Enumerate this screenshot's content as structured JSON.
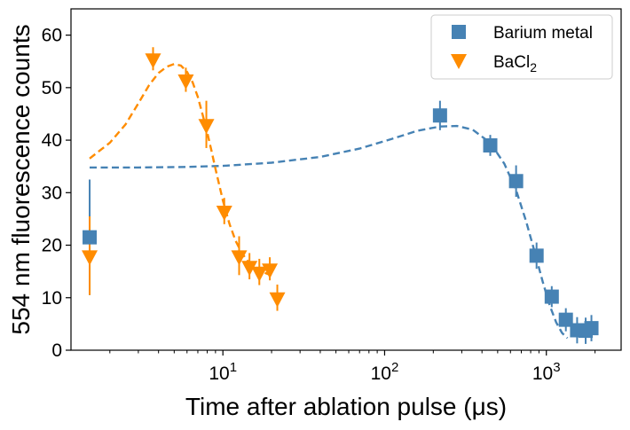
{
  "chart_data": {
    "type": "scatter",
    "xlabel": "Time after ablation pulse (μs)",
    "ylabel": "554 nm fluorescence counts",
    "xscale": "log",
    "xlim": [
      1.15,
      2900
    ],
    "ylim": [
      0,
      65
    ],
    "yticks": [
      0,
      10,
      20,
      30,
      40,
      50,
      60
    ],
    "xticks": [
      {
        "value": 10,
        "base": "10",
        "exp": "1"
      },
      {
        "value": 100,
        "base": "10",
        "exp": "2"
      },
      {
        "value": 1000,
        "base": "10",
        "exp": "3"
      }
    ],
    "legend_position": "top-right",
    "series": [
      {
        "name": "Barium metal",
        "name_display": {
          "text": "Barium metal",
          "sub": ""
        },
        "marker": "square",
        "color": "#4682b4",
        "points": [
          {
            "x": 1.5,
            "y": 21.5,
            "err": 11
          },
          {
            "x": 220,
            "y": 44.7,
            "err": 2.8
          },
          {
            "x": 450,
            "y": 39,
            "err": 2
          },
          {
            "x": 650,
            "y": 32.2,
            "err": 3
          },
          {
            "x": 870,
            "y": 18,
            "err": 2.5
          },
          {
            "x": 1080,
            "y": 10.2,
            "err": 2
          },
          {
            "x": 1320,
            "y": 5.8,
            "err": 2.2
          },
          {
            "x": 1550,
            "y": 3.8,
            "err": 2.5
          },
          {
            "x": 1750,
            "y": 3.7,
            "err": 2.5
          },
          {
            "x": 1900,
            "y": 4.2,
            "err": 2.5
          }
        ],
        "fit": [
          {
            "x": 1.5,
            "y": 34.8
          },
          {
            "x": 3,
            "y": 34.8
          },
          {
            "x": 6,
            "y": 34.9
          },
          {
            "x": 10,
            "y": 35.1
          },
          {
            "x": 20,
            "y": 35.7
          },
          {
            "x": 40,
            "y": 36.8
          },
          {
            "x": 70,
            "y": 38.4
          },
          {
            "x": 110,
            "y": 40.2
          },
          {
            "x": 160,
            "y": 41.8
          },
          {
            "x": 220,
            "y": 42.6
          },
          {
            "x": 280,
            "y": 42.7
          },
          {
            "x": 350,
            "y": 42
          },
          {
            "x": 450,
            "y": 39.5
          },
          {
            "x": 550,
            "y": 35.5
          },
          {
            "x": 650,
            "y": 30.5
          },
          {
            "x": 750,
            "y": 24.5
          },
          {
            "x": 850,
            "y": 18.5
          },
          {
            "x": 950,
            "y": 13
          },
          {
            "x": 1050,
            "y": 8.5
          },
          {
            "x": 1150,
            "y": 5.3
          },
          {
            "x": 1250,
            "y": 3.3
          },
          {
            "x": 1350,
            "y": 2.3
          }
        ]
      },
      {
        "name": "BaCl2",
        "name_display": {
          "text": "BaCl",
          "sub": "2"
        },
        "marker": "triangle-down",
        "color": "#ff8c00",
        "points": [
          {
            "x": 1.5,
            "y": 18,
            "err": 7.5
          },
          {
            "x": 3.7,
            "y": 55.5,
            "err": 2.2
          },
          {
            "x": 5.9,
            "y": 51.5,
            "err": 2.3
          },
          {
            "x": 7.9,
            "y": 43,
            "err": 4.5
          },
          {
            "x": 10.2,
            "y": 26.5,
            "err": 2.5
          },
          {
            "x": 12.6,
            "y": 18,
            "err": 3.7
          },
          {
            "x": 14.6,
            "y": 16,
            "err": 2.5
          },
          {
            "x": 16.8,
            "y": 14.9,
            "err": 2.5
          },
          {
            "x": 19.5,
            "y": 15.5,
            "err": 2.2
          },
          {
            "x": 21.7,
            "y": 10,
            "err": 2.5
          }
        ],
        "fit": [
          {
            "x": 1.5,
            "y": 36.5
          },
          {
            "x": 2,
            "y": 39.5
          },
          {
            "x": 2.5,
            "y": 43
          },
          {
            "x": 3,
            "y": 47
          },
          {
            "x": 3.5,
            "y": 50.5
          },
          {
            "x": 4,
            "y": 52.8
          },
          {
            "x": 4.5,
            "y": 54
          },
          {
            "x": 5,
            "y": 54.5
          },
          {
            "x": 5.5,
            "y": 54.2
          },
          {
            "x": 6,
            "y": 53
          },
          {
            "x": 6.5,
            "y": 51
          },
          {
            "x": 7,
            "y": 48.2
          },
          {
            "x": 7.5,
            "y": 44.8
          },
          {
            "x": 8,
            "y": 41.5
          },
          {
            "x": 8.5,
            "y": 38
          },
          {
            "x": 9,
            "y": 34.5
          },
          {
            "x": 10,
            "y": 28.5
          },
          {
            "x": 11,
            "y": 24
          },
          {
            "x": 12,
            "y": 20.8
          },
          {
            "x": 13,
            "y": 18.7
          },
          {
            "x": 14,
            "y": 17.2
          },
          {
            "x": 15.5,
            "y": 15.9
          },
          {
            "x": 17,
            "y": 15.1
          },
          {
            "x": 19,
            "y": 14.5
          },
          {
            "x": 21,
            "y": 14.2
          }
        ]
      }
    ]
  }
}
